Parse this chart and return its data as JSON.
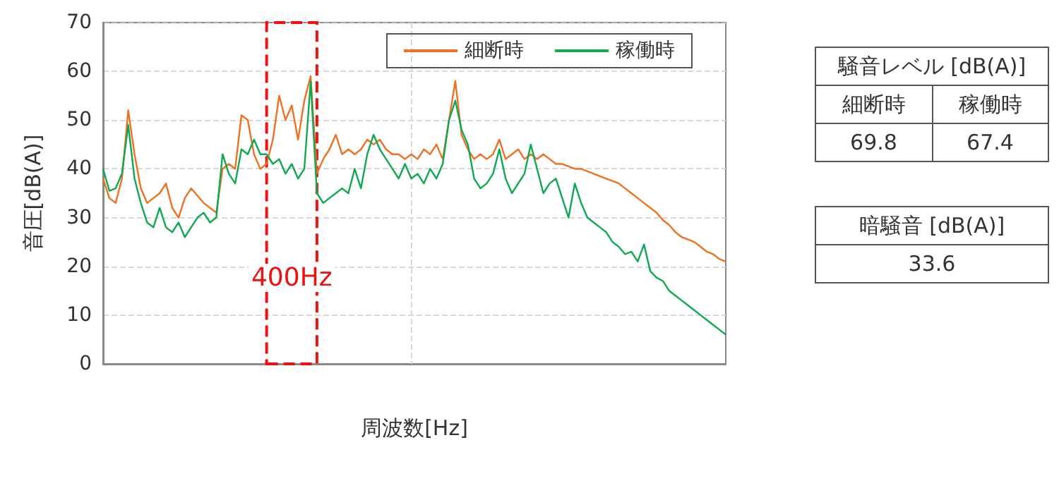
{
  "chart_data": [
    {
      "type": "line",
      "xlabel": "周波数[Hz]",
      "ylabel": "音圧[dB(A)]",
      "categories": [
        null,
        null,
        null,
        null,
        null,
        null,
        null,
        null,
        null,
        null,
        null,
        null,
        null,
        null,
        null,
        null,
        null,
        null,
        null,
        null,
        null,
        null,
        null,
        null,
        null,
        null,
        null,
        null,
        null,
        null,
        null,
        null,
        null,
        null,
        null,
        null,
        null,
        null,
        null,
        null,
        null,
        null,
        null,
        null,
        null,
        null,
        null,
        null,
        null,
        null,
        null,
        null,
        null,
        null,
        null,
        null,
        null,
        null,
        null,
        null,
        null,
        null,
        null,
        null,
        null,
        null,
        null,
        null,
        null,
        null,
        null,
        null,
        null,
        null,
        null,
        null,
        null,
        null,
        null,
        null,
        null,
        null,
        null,
        null,
        null,
        null,
        null,
        null,
        null,
        null,
        null,
        null,
        null,
        null,
        null,
        null,
        null,
        null,
        null,
        null
      ],
      "series": [
        {
          "name": "細断時",
          "color": "#f07022",
          "values": [
            38,
            34,
            33,
            38,
            52,
            43,
            36,
            33,
            34,
            35,
            37,
            32,
            30,
            34,
            36,
            34.5,
            33,
            32,
            31,
            40,
            41,
            40,
            51,
            50,
            43,
            40,
            41,
            46,
            55,
            50,
            53,
            46,
            54,
            59,
            39,
            42,
            44,
            47,
            43,
            44,
            43,
            44,
            46,
            45,
            46,
            44,
            43,
            43,
            42,
            43,
            42,
            44,
            43,
            45,
            42,
            50,
            58,
            47,
            44,
            42,
            43,
            42,
            43,
            46,
            42,
            43,
            44,
            42,
            43,
            42,
            43,
            42,
            41,
            41,
            40.5,
            40,
            40,
            39.5,
            39,
            38.5,
            38,
            37.5,
            37,
            36,
            35,
            34,
            33,
            32,
            31,
            29.5,
            28.5,
            27,
            26,
            25.5,
            25,
            24,
            23,
            22.5,
            21.5,
            21
          ]
        },
        {
          "name": "稼働時",
          "color": "#10a850",
          "values": [
            40,
            35.5,
            36,
            39,
            49,
            38,
            33,
            29,
            28,
            32,
            28,
            27,
            29,
            26,
            28,
            30,
            31,
            29,
            30,
            43,
            39,
            37,
            44,
            43,
            46,
            43,
            43,
            41,
            42,
            39,
            41,
            38,
            40,
            58,
            35,
            33,
            34,
            35,
            36,
            35,
            40,
            36,
            43,
            47,
            44,
            42,
            40,
            38,
            41,
            38,
            39,
            37,
            40,
            38,
            41,
            50,
            54,
            48,
            45,
            38,
            36,
            37,
            39,
            44,
            38,
            35,
            37,
            39,
            45,
            40,
            35,
            37,
            38,
            34,
            30,
            37,
            33,
            30,
            29,
            28,
            27,
            25,
            24,
            22.5,
            23,
            21,
            24.5,
            19,
            17.7,
            17,
            15,
            14,
            13,
            12,
            11,
            10,
            9,
            8,
            7,
            6
          ]
        }
      ],
      "ylim": [
        0,
        70
      ],
      "yticks": [
        0,
        10,
        20,
        30,
        40,
        50,
        60,
        70
      ],
      "tick_labels": "y",
      "grid": true,
      "legend": "top right",
      "annotations": [
        "400Hz"
      ]
    },
    {
      "type": "other",
      "title": "騒音レベル [dB(A)]",
      "categories": [
        "細断時",
        "稼働時"
      ],
      "values": [
        69.8,
        67.4
      ],
      "data_labels": true
    },
    {
      "type": "other",
      "title": "暗騒音 [dB(A)]",
      "categories": [
        null
      ],
      "values": [
        33.6
      ],
      "data_labels": true
    }
  ]
}
